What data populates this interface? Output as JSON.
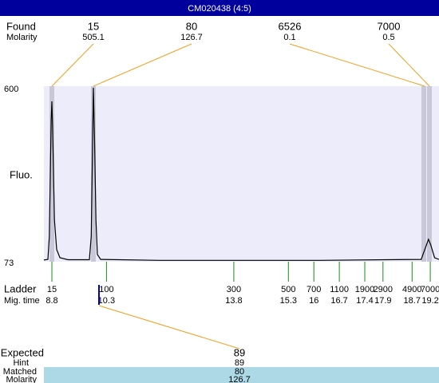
{
  "header": {
    "title": "CM020438 (4:5)"
  },
  "found": {
    "label": "Found",
    "molarity_label": "Molarity",
    "sizes": [
      15,
      80,
      6526,
      7000
    ],
    "molarities": [
      505.1,
      126.7,
      0.1,
      0.5
    ]
  },
  "chart_data": {
    "type": "line",
    "y_label": "Fluo.",
    "color": "#000000",
    "x": [
      8.58,
      8.69,
      8.73,
      8.78,
      8.8,
      8.82,
      8.87,
      8.93,
      9.02,
      9.24,
      9.83,
      9.88,
      9.92,
      9.94,
      9.97,
      10.01,
      10.05,
      10.14,
      11.76,
      16.15,
      18.95,
      19.05,
      19.15,
      19.21,
      19.32,
      19.44
    ],
    "values": [
      78,
      80,
      150,
      500,
      559,
      480,
      200,
      110,
      85,
      79,
      79,
      150,
      450,
      600,
      450,
      200,
      95,
      80,
      77,
      77,
      80,
      110,
      141,
      125,
      85,
      80
    ],
    "xlim": [
      8.58,
      19.44
    ],
    "ylim": [
      73,
      600
    ],
    "yticks": [
      73,
      600
    ]
  },
  "ladder": {
    "label": "Ladder",
    "time_label": "Mig. time",
    "sizes": [
      15,
      100,
      300,
      500,
      700,
      1100,
      1900,
      2900,
      4900,
      7000
    ],
    "times": [
      8.8,
      10.3,
      13.8,
      15.3,
      16,
      16.7,
      17.4,
      17.9,
      18.7,
      19.2
    ]
  },
  "expected": {
    "label": "Expected",
    "value": 89,
    "hint_label": "Hint",
    "hint": 89,
    "matched_label": "Matched",
    "matched": 80,
    "molarity_label": "Molarity",
    "molarity": 126.7
  }
}
